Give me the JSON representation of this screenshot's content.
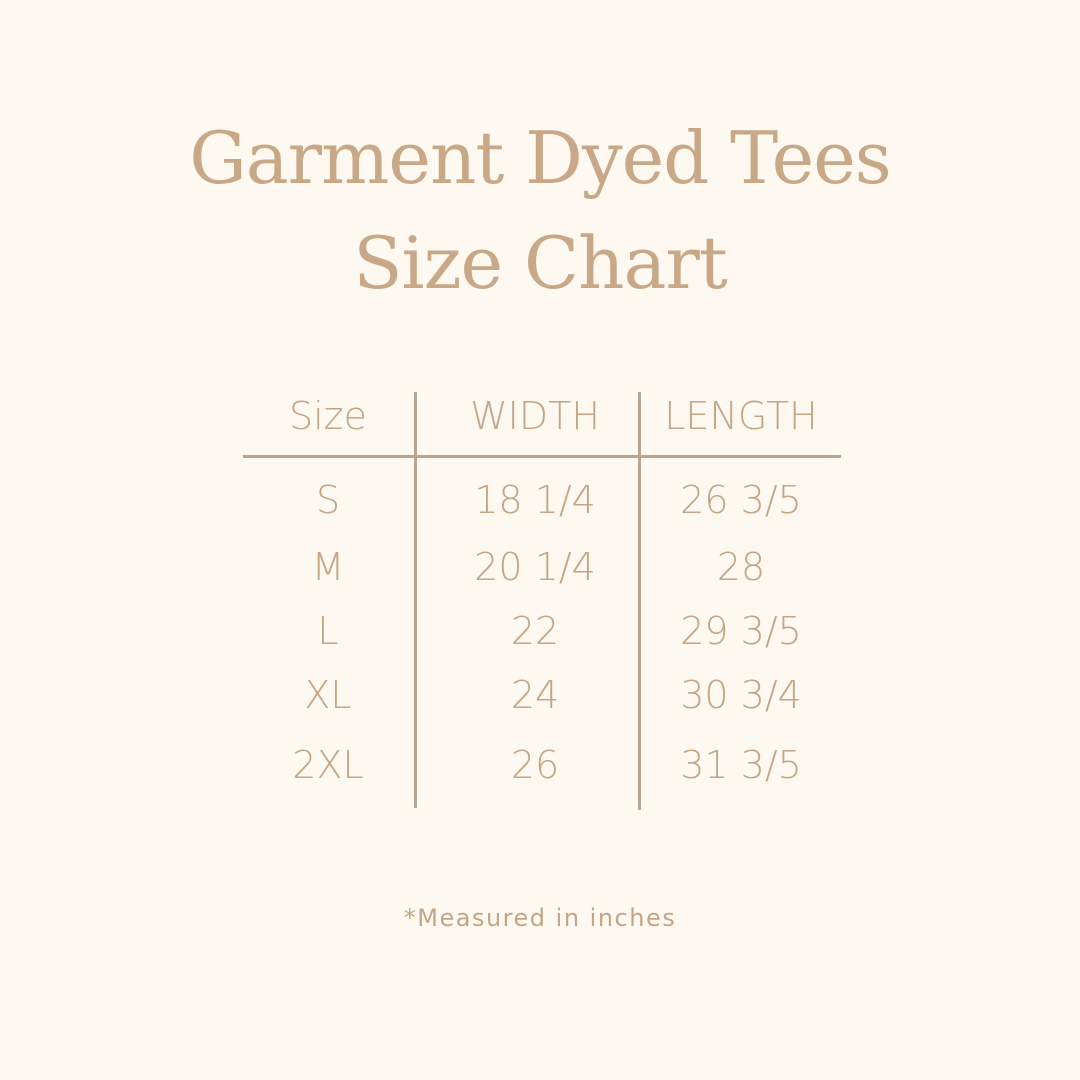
{
  "title": {
    "line1": "Garment Dyed Tees",
    "line2": "Size Chart"
  },
  "table": {
    "headers": [
      "Size",
      "WIDTH",
      "LENGTH"
    ],
    "rows": [
      [
        "S",
        "18 1/4",
        "26 3/5"
      ],
      [
        "M",
        "20 1/4",
        "28"
      ],
      [
        "L",
        "22",
        "29 3/5"
      ],
      [
        "XL",
        "24",
        "30 3/4"
      ],
      [
        "2XL",
        "26",
        "31 3/5"
      ]
    ]
  },
  "footnote": "*Measured in inches",
  "colors": {
    "background": "#fdf8f0",
    "text": "#c4a585",
    "lines": "#b8a48f"
  }
}
